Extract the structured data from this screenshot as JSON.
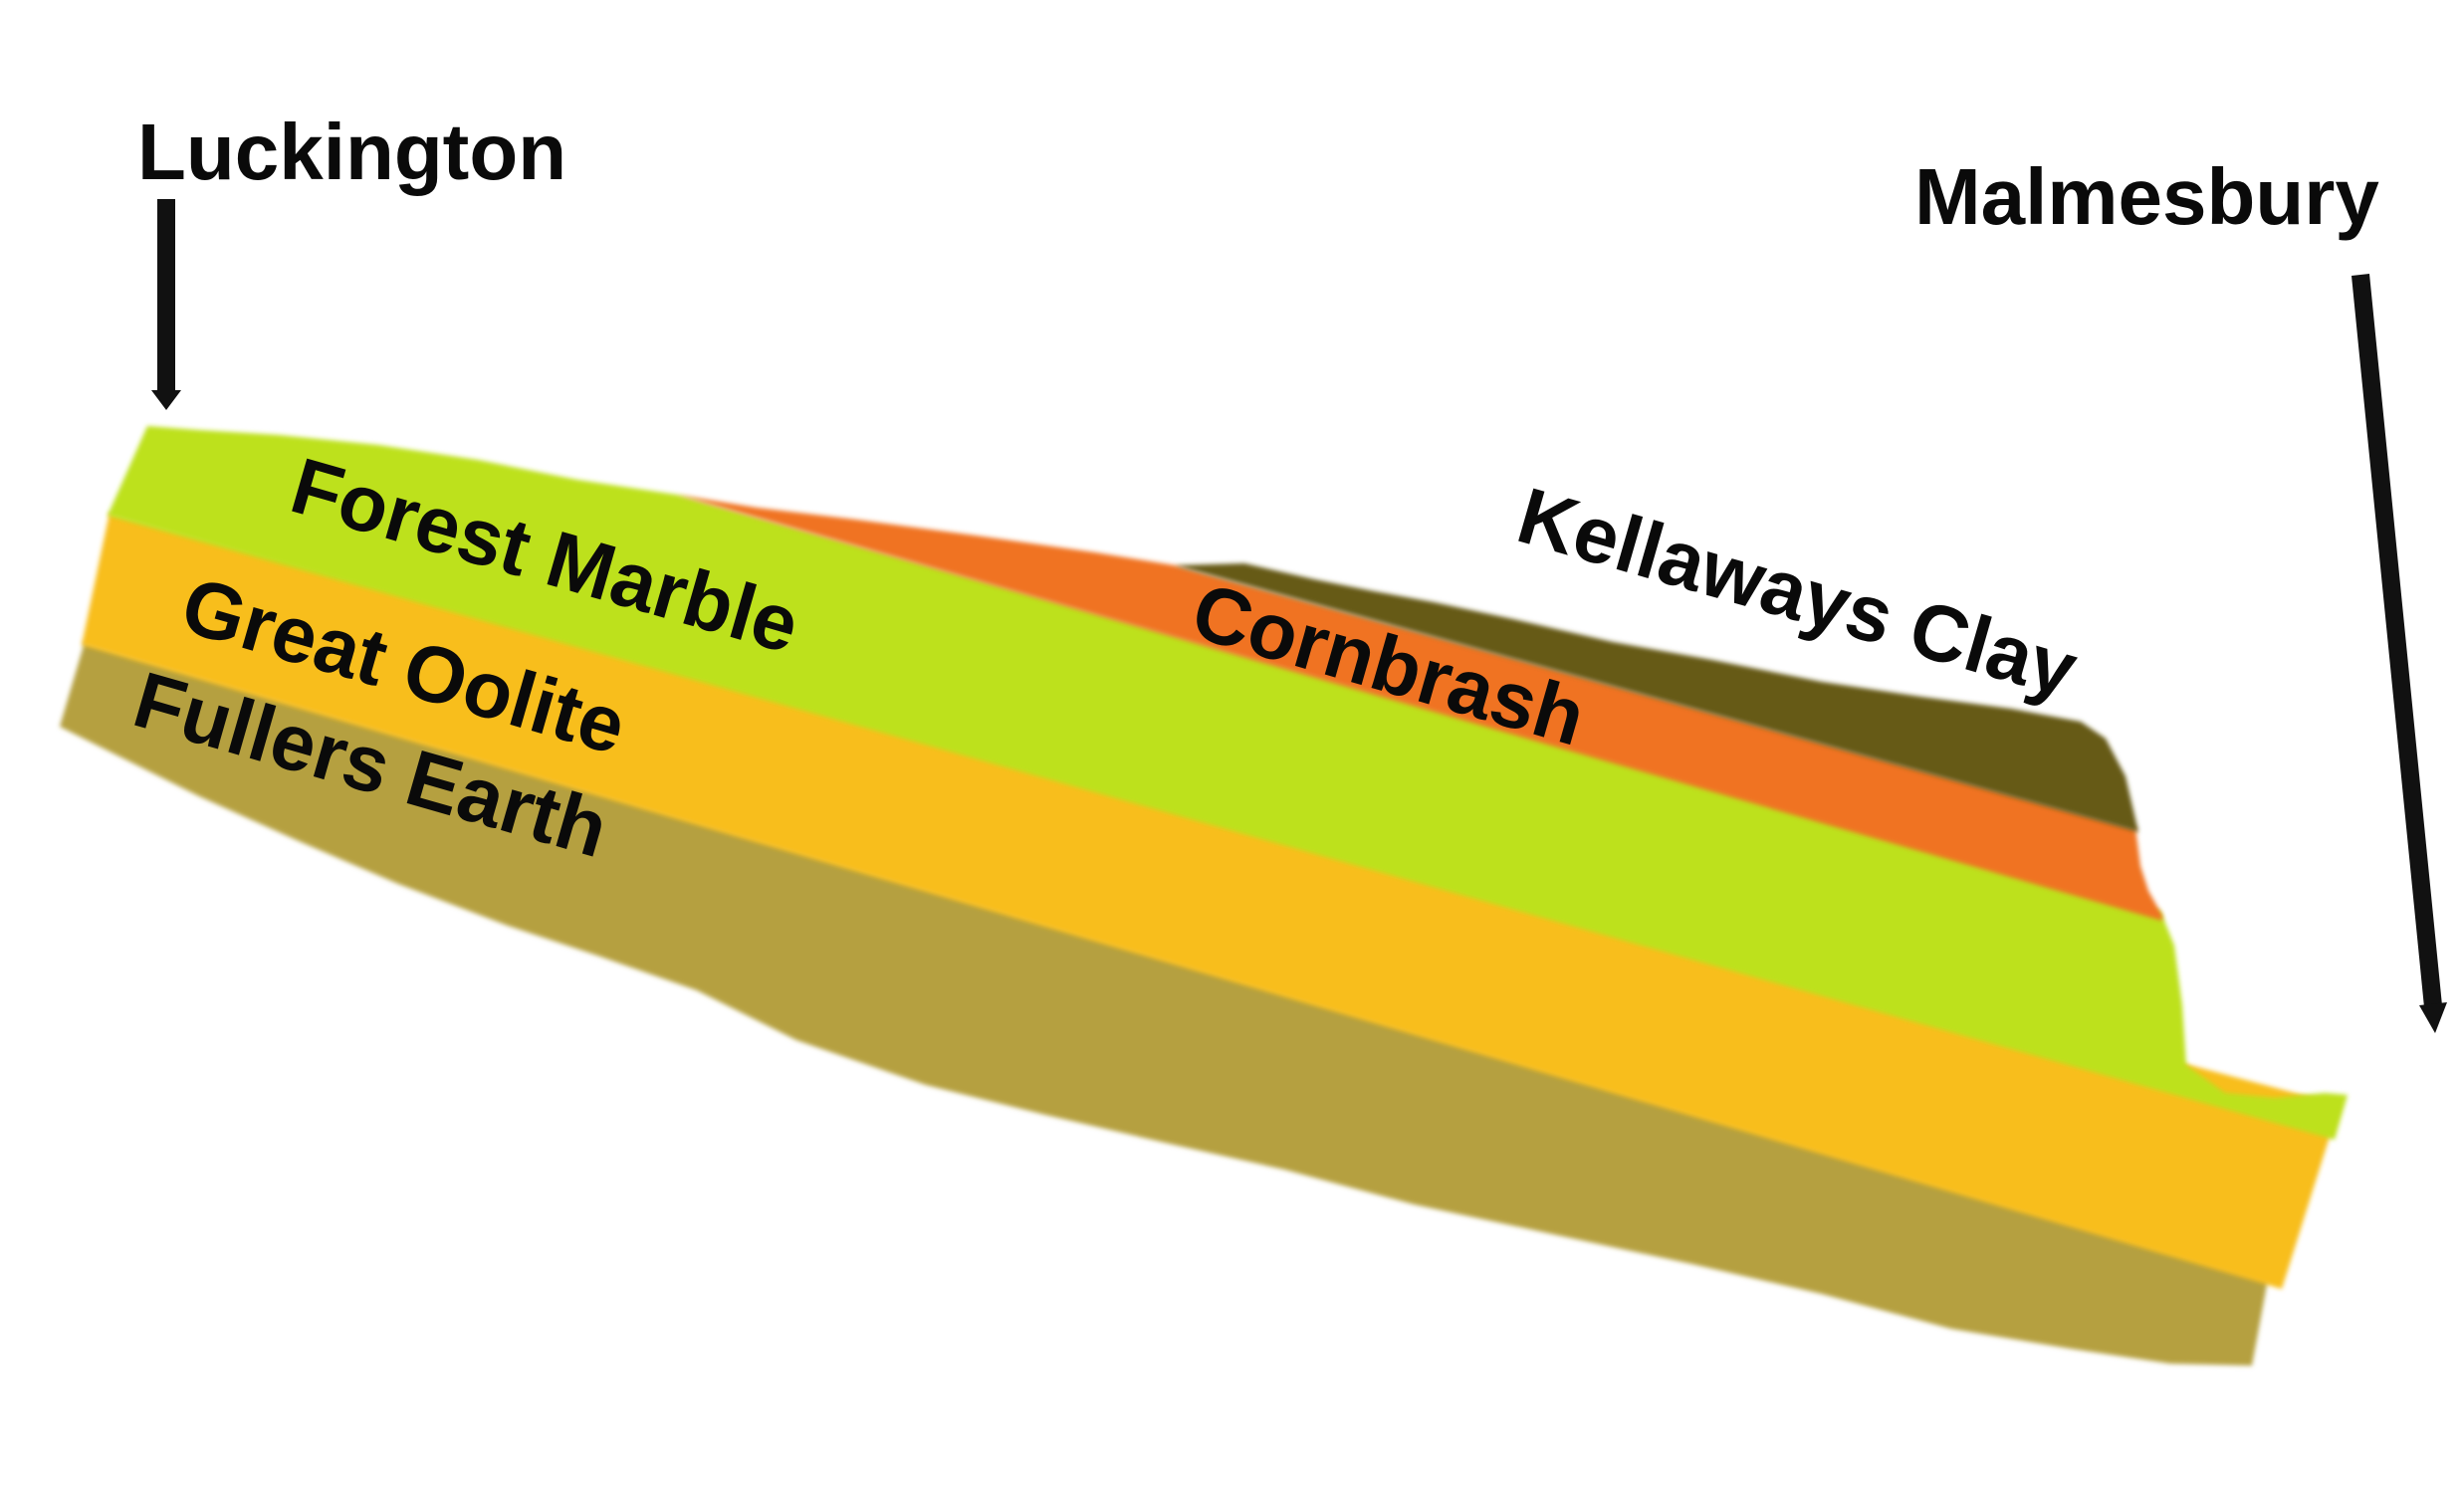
{
  "places": {
    "left": "Luckington",
    "right": "Malmesbury"
  },
  "layers": {
    "forest_marble": {
      "label": "Forest Marble",
      "color": "#bde11f"
    },
    "great_oolite": {
      "label": "Great Oolite",
      "color": "#f8be1b"
    },
    "fullers_earth": {
      "label": "Fullers Earth",
      "color": "#b5a040"
    },
    "cornbrash": {
      "label": "Cornbrash",
      "color": "#f07320"
    },
    "kellaways_clay": {
      "label": "Kellaways Clay",
      "color": "#665a18"
    }
  },
  "colors": {
    "arrow": "#111111",
    "text": "#0a0a0a",
    "background": "#ffffff"
  }
}
